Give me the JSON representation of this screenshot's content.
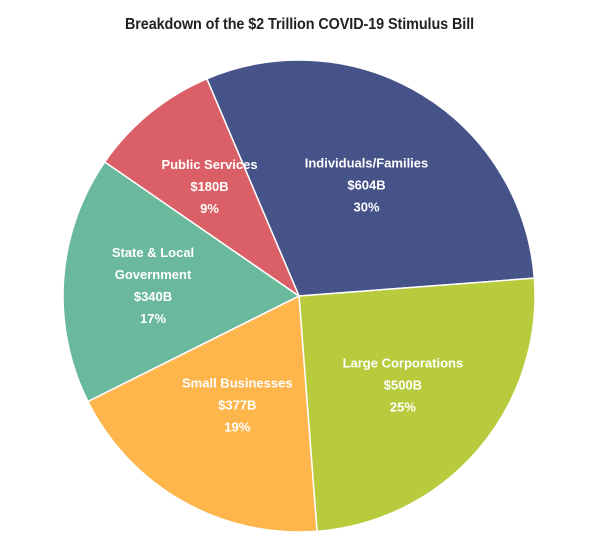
{
  "chart_data": {
    "type": "pie",
    "title": "Breakdown of the $2 Trillion COVID-19 Stimulus Bill",
    "legend": "none",
    "slices": [
      {
        "label": [
          "Individuals/Families"
        ],
        "amount": "$604B",
        "percent": "30%",
        "value": 604,
        "color": "#465389"
      },
      {
        "label": [
          "Large Corporations"
        ],
        "amount": "$500B",
        "percent": "25%",
        "value": 500,
        "color": "#B7CB3D"
      },
      {
        "label": [
          "Small Businesses"
        ],
        "amount": "$377B",
        "percent": "19%",
        "value": 377,
        "color": "#FDB54C"
      },
      {
        "label": [
          "State & Local",
          "Government"
        ],
        "amount": "$340B",
        "percent": "17%",
        "value": 340,
        "color": "#6BB99D"
      },
      {
        "label": [
          "Public Services"
        ],
        "amount": "$180B",
        "percent": "9%",
        "value": 180,
        "color": "#DB5F66"
      }
    ]
  }
}
